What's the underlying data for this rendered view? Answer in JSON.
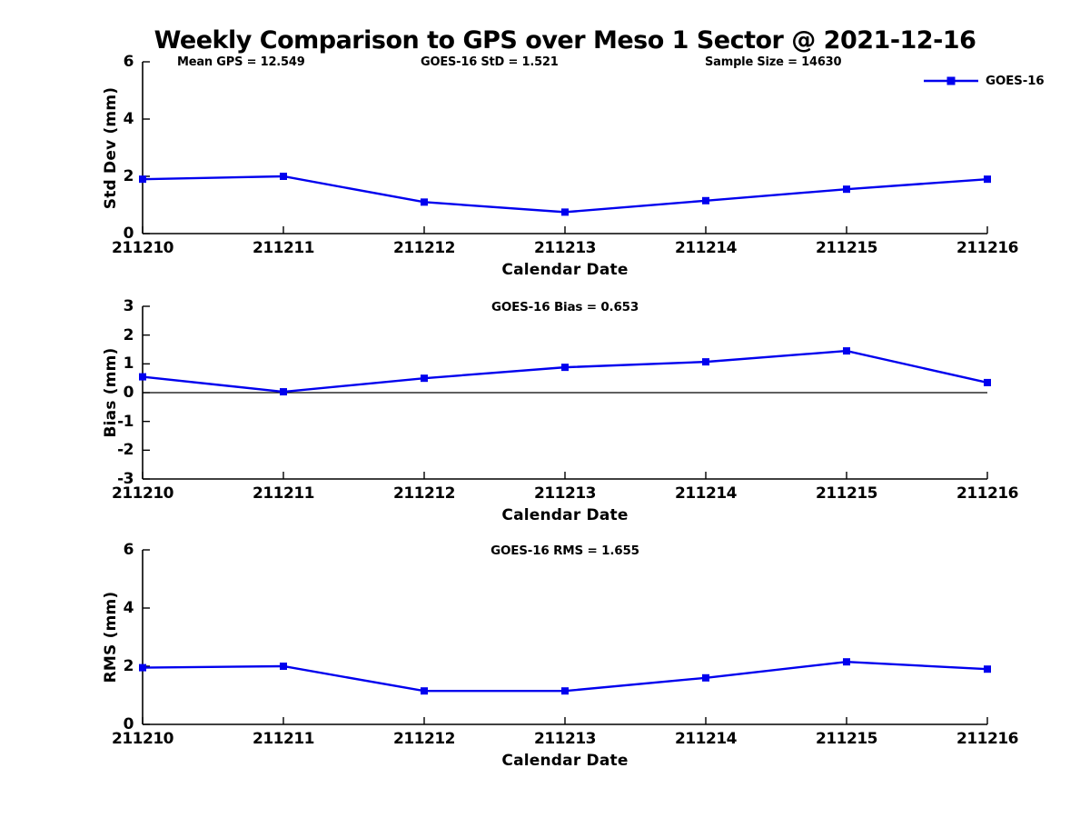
{
  "figure": {
    "title": "Weekly Comparison to GPS over Meso 1 Sector @ 2021-12-16",
    "background": "#FFFFFF"
  },
  "annotations": {
    "mean_gps": "Mean GPS = 12.549",
    "goes_std": "GOES-16 StD = 1.521",
    "sample_size": "Sample Size = 14630"
  },
  "legend": {
    "label": "GOES-16",
    "marker": "filled-square",
    "position": "upper-right"
  },
  "colors": {
    "series": "#0000EE",
    "axis": "#000000",
    "text": "#000000"
  },
  "chart_data": [
    {
      "type": "line",
      "title": "",
      "series_name": "GOES-16",
      "xlabel": "Calendar Date",
      "ylabel": "Std Dev (mm)",
      "x": [
        "211210",
        "211211",
        "211212",
        "211213",
        "211214",
        "211215",
        "211216"
      ],
      "values": [
        1.9,
        2.0,
        1.1,
        0.75,
        1.15,
        1.55,
        1.9
      ],
      "ylim": [
        0,
        6
      ],
      "yticks": [
        0,
        2,
        4,
        6
      ],
      "grid": false,
      "zero_line": false
    },
    {
      "type": "line",
      "title": "GOES-16 Bias  = 0.653",
      "series_name": "GOES-16",
      "xlabel": "Calendar Date",
      "ylabel": "Bias (mm)",
      "x": [
        "211210",
        "211211",
        "211212",
        "211213",
        "211214",
        "211215",
        "211216"
      ],
      "values": [
        0.55,
        0.03,
        0.5,
        0.88,
        1.07,
        1.45,
        0.35
      ],
      "ylim": [
        -3,
        3
      ],
      "yticks": [
        -3,
        -2,
        -1,
        0,
        1,
        2,
        3
      ],
      "grid": false,
      "zero_line": true
    },
    {
      "type": "line",
      "title": "GOES-16 RMS = 1.655",
      "series_name": "GOES-16",
      "xlabel": "Calendar Date",
      "ylabel": "RMS (mm)",
      "x": [
        "211210",
        "211211",
        "211212",
        "211213",
        "211214",
        "211215",
        "211216"
      ],
      "values": [
        1.95,
        2.0,
        1.15,
        1.15,
        1.6,
        2.15,
        1.9
      ],
      "ylim": [
        0,
        6
      ],
      "yticks": [
        0,
        2,
        4,
        6
      ],
      "grid": false,
      "zero_line": false
    }
  ]
}
